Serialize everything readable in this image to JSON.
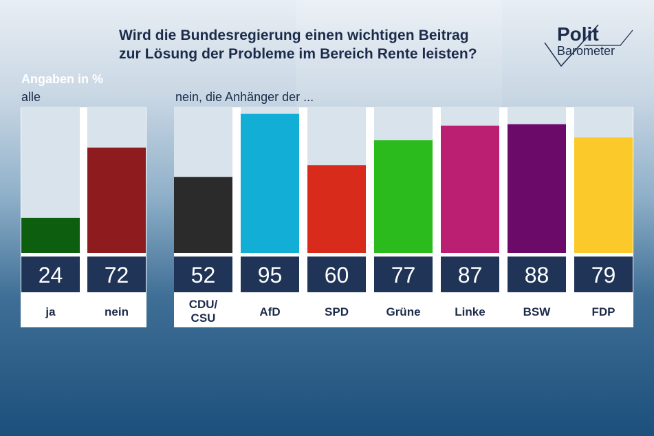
{
  "header": {
    "title_line1": "Wird die Bundesregierung einen wichtigen Beitrag",
    "title_line2": "zur Lösung der Probleme im Bereich Rente leisten?",
    "logo_line1": "Polit",
    "logo_line2": "Barometer"
  },
  "unit_label": "Angaben in %",
  "group_all_label": "alle",
  "group_parties_label": "nein, die Anhänger der ...",
  "colors": {
    "ja": "#0e5e0f",
    "nein": "#8e1c1f",
    "CDU/CSU": "#2b2b2b",
    "AfD": "#12aed6",
    "SPD": "#d92b1c",
    "Grüne": "#2bbb1c",
    "Linke": "#bb1f71",
    "BSW": "#6c0a6a",
    "FDP": "#fbc92a",
    "value_band": "#1f3456",
    "track": "#d8e3ec"
  },
  "chart_data": {
    "type": "bar",
    "title": "Wird die Bundesregierung einen wichtigen Beitrag zur Lösung der Probleme im Bereich Rente leisten?",
    "unit": "Angaben in %",
    "ylim": [
      0,
      100
    ],
    "groups": [
      {
        "label": "alle",
        "categories": [
          "ja",
          "nein"
        ],
        "values": [
          24,
          72
        ]
      },
      {
        "label": "nein, die Anhänger der ...",
        "categories": [
          "CDU/CSU",
          "AfD",
          "SPD",
          "Grüne",
          "Linke",
          "BSW",
          "FDP"
        ],
        "values": [
          52,
          95,
          60,
          77,
          87,
          88,
          79
        ]
      }
    ]
  }
}
